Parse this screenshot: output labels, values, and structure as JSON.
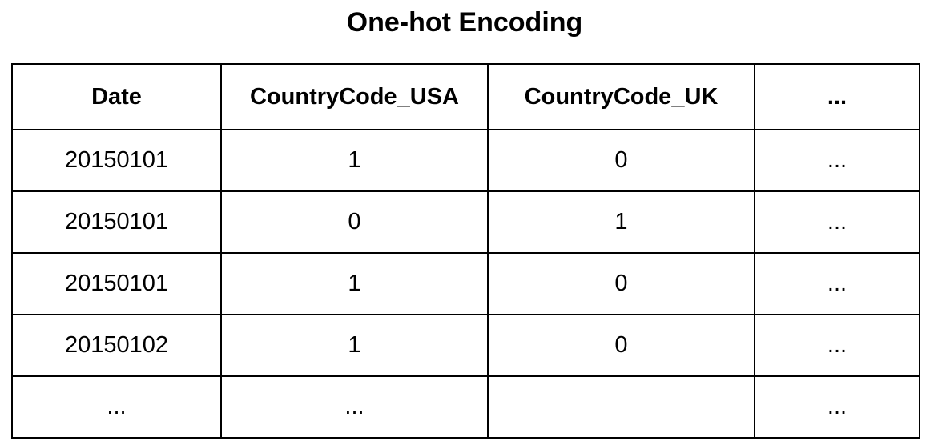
{
  "title": "One-hot Encoding",
  "table": {
    "headers": [
      "Date",
      "CountryCode_USA",
      "CountryCode_UK",
      "..."
    ],
    "rows": [
      [
        "20150101",
        "1",
        "0",
        "..."
      ],
      [
        "20150101",
        "0",
        "1",
        "..."
      ],
      [
        "20150101",
        "1",
        "0",
        "..."
      ],
      [
        "20150102",
        "1",
        "0",
        "..."
      ],
      [
        "...",
        "...",
        "",
        "..."
      ]
    ]
  }
}
